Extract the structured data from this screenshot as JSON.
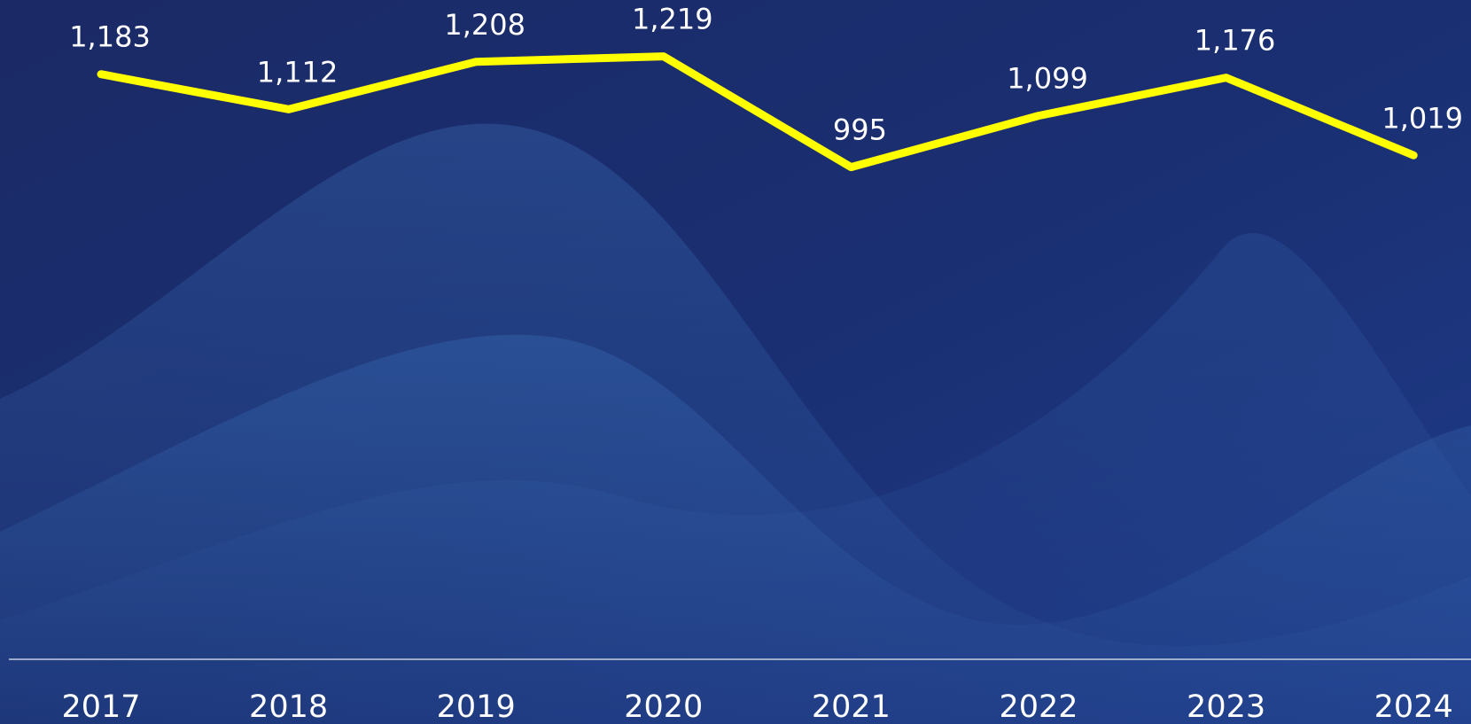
{
  "chart_data": {
    "type": "line",
    "categories": [
      "2017",
      "2018",
      "2019",
      "2020",
      "2021",
      "2022",
      "2023",
      "2024"
    ],
    "values": [
      1183,
      1112,
      1208,
      1219,
      995,
      1099,
      1176,
      1019
    ],
    "value_labels": [
      "1,183",
      "1,112",
      "1,208",
      "1,219",
      "995",
      "1,099",
      "1,176",
      "1,019"
    ],
    "color": "#ffff00",
    "ylim": [
      0,
      1333
    ]
  }
}
